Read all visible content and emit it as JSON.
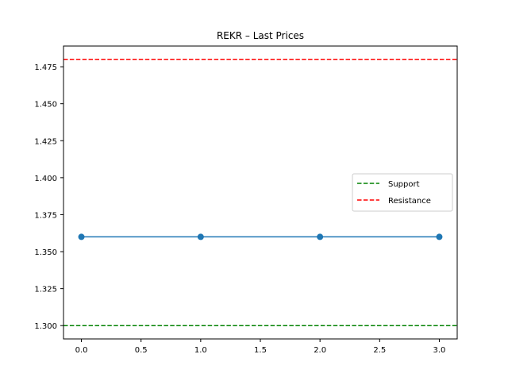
{
  "chart_data": {
    "type": "line",
    "title": "REKR – Last Prices",
    "xlabel": "",
    "ylabel": "",
    "xlim": [
      -0.15,
      3.15
    ],
    "ylim": [
      1.291,
      1.489
    ],
    "x_ticks": [
      0.0,
      0.5,
      1.0,
      1.5,
      2.0,
      2.5,
      3.0
    ],
    "x_tick_labels": [
      "0.0",
      "0.5",
      "1.0",
      "1.5",
      "2.0",
      "2.5",
      "3.0"
    ],
    "y_ticks": [
      1.3,
      1.325,
      1.35,
      1.375,
      1.4,
      1.425,
      1.45,
      1.475
    ],
    "y_tick_labels": [
      "1.300",
      "1.325",
      "1.350",
      "1.375",
      "1.400",
      "1.425",
      "1.450",
      "1.475"
    ],
    "grid": false,
    "series": [
      {
        "x": [
          0,
          1,
          2,
          3
        ],
        "values": [
          1.36,
          1.36,
          1.36,
          1.36
        ],
        "color": "#1f77b4",
        "marker": "circle"
      }
    ],
    "reference_lines": [
      {
        "name": "Support",
        "y": 1.3,
        "color": "#008000",
        "style": "dashed"
      },
      {
        "name": "Resistance",
        "y": 1.48,
        "color": "#ff0000",
        "style": "dashed"
      }
    ],
    "legend": {
      "placement": "center-right",
      "entries": [
        "Support",
        "Resistance"
      ]
    }
  }
}
